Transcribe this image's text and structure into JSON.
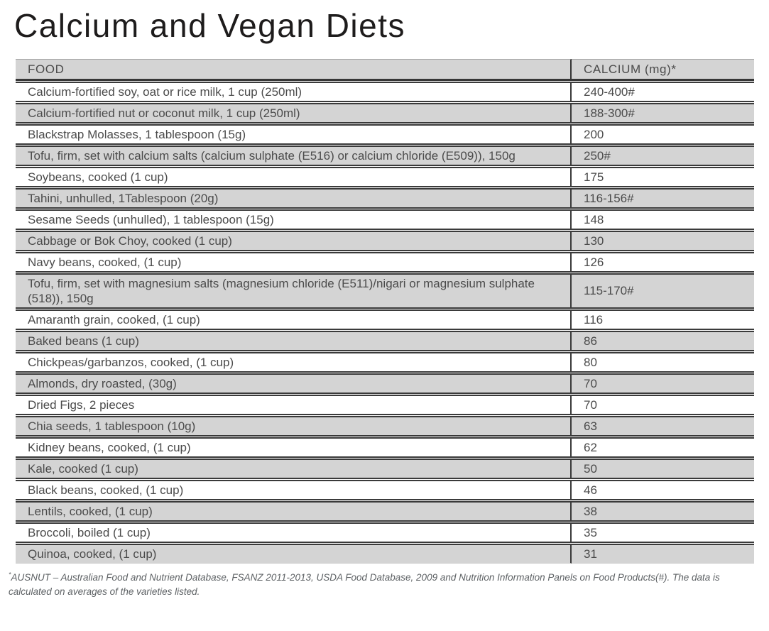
{
  "page": {
    "title": "Calcium and Vegan Diets"
  },
  "table": {
    "headers": {
      "food": "FOOD",
      "calcium": "CALCIUM (mg)*"
    },
    "rows": [
      {
        "food": "Calcium-fortified soy, oat or rice milk, 1 cup (250ml)",
        "calcium": "240-400#"
      },
      {
        "food": "Calcium-fortified nut or coconut milk, 1 cup (250ml)",
        "calcium": "188-300#"
      },
      {
        "food": "Blackstrap Molasses, 1 tablespoon (15g)",
        "calcium": "200"
      },
      {
        "food": "Tofu, firm, set with calcium salts (calcium sulphate (E516) or calcium chloride (E509)), 150g",
        "calcium": "250#"
      },
      {
        "food": "Soybeans, cooked (1 cup)",
        "calcium": "175"
      },
      {
        "food": "Tahini, unhulled, 1Tablespoon (20g)",
        "calcium": "116-156#"
      },
      {
        "food": "Sesame Seeds (unhulled), 1 tablespoon (15g)",
        "calcium": "148"
      },
      {
        "food": "Cabbage or Bok Choy, cooked (1 cup)",
        "calcium": "130"
      },
      {
        "food": "Navy beans, cooked, (1 cup)",
        "calcium": "126"
      },
      {
        "food": "Tofu, firm, set with magnesium salts (magnesium chloride (E511)/nigari or magnesium sulphate (518)), 150g",
        "calcium": "115-170#"
      },
      {
        "food": "Amaranth grain, cooked, (1 cup)",
        "calcium": "116"
      },
      {
        "food": "Baked beans (1 cup)",
        "calcium": "86"
      },
      {
        "food": "Chickpeas/garbanzos, cooked, (1 cup)",
        "calcium": "80"
      },
      {
        "food": "Almonds, dry roasted, (30g)",
        "calcium": "70"
      },
      {
        "food": "Dried Figs, 2 pieces",
        "calcium": "70"
      },
      {
        "food": "Chia seeds, 1 tablespoon (10g)",
        "calcium": "63"
      },
      {
        "food": "Kidney beans, cooked, (1 cup)",
        "calcium": "62"
      },
      {
        "food": "Kale, cooked (1 cup)",
        "calcium": "50"
      },
      {
        "food": "Black beans, cooked, (1 cup)",
        "calcium": "46"
      },
      {
        "food": "Lentils, cooked, (1 cup)",
        "calcium": "38"
      },
      {
        "food": "Broccoli, boiled (1 cup)",
        "calcium": "35"
      },
      {
        "food": "Quinoa, cooked, (1 cup)",
        "calcium": "31"
      }
    ]
  },
  "footnote": {
    "marker": "*",
    "text": "AUSNUT – Australian Food and Nutrient Database, FSANZ 2011-2013, USDA Food Database, 2009 and Nutrition Information Panels on Food Products(#). The data is calculated on averages of the varieties listed."
  },
  "colors": {
    "row_shaded": "#d4d4d4",
    "border_dark": "#3a3a3a",
    "table_text": "#4b4b4b",
    "title_text": "#1e1c1c",
    "footnote_text": "#5d6164"
  }
}
